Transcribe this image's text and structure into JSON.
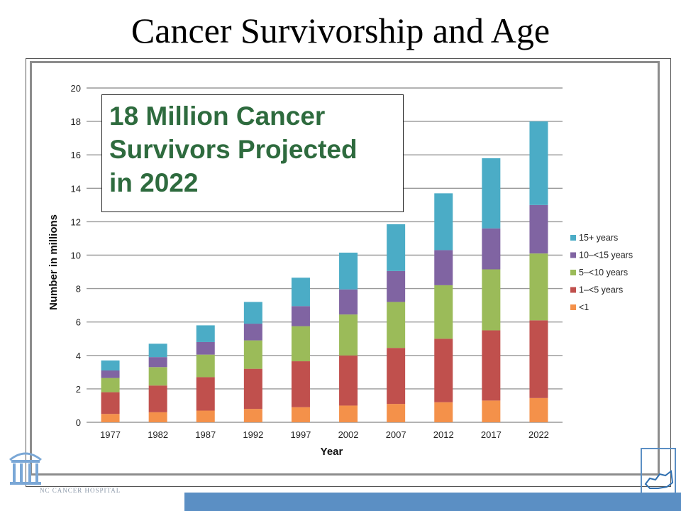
{
  "slide": {
    "title": "Cancer Survivorship and Age",
    "footer_text": "NC CANCER HOSPITAL",
    "callout_lines": [
      "18 Million Cancer",
      "Survivors Projected",
      "in 2022"
    ]
  },
  "colors": {
    "background": "#ffffff",
    "title": "#000000",
    "callout_text": "#2e6b3e",
    "bottom_bar": "#5b8fc4",
    "grid": "#9a9a9a"
  },
  "chart_data": {
    "type": "bar",
    "stacked": true,
    "xlabel": "Year",
    "ylabel": "Number in millions",
    "ylim": [
      0,
      20
    ],
    "yticks": [
      0,
      2,
      4,
      6,
      8,
      10,
      12,
      14,
      16,
      18,
      20
    ],
    "grid": true,
    "legend_position": "right",
    "categories": [
      "1977",
      "1982",
      "1987",
      "1992",
      "1997",
      "2002",
      "2007",
      "2012",
      "2017",
      "2022"
    ],
    "series": [
      {
        "name": "<1",
        "color": "#f4914a",
        "values": [
          0.5,
          0.6,
          0.7,
          0.8,
          0.9,
          1.0,
          1.1,
          1.2,
          1.3,
          1.45
        ]
      },
      {
        "name": "1–<5 years",
        "color": "#c0504d",
        "values": [
          1.3,
          1.6,
          2.0,
          2.4,
          2.75,
          3.0,
          3.35,
          3.8,
          4.2,
          4.65
        ]
      },
      {
        "name": "5–<10 years",
        "color": "#9bbb59",
        "values": [
          0.85,
          1.1,
          1.35,
          1.7,
          2.1,
          2.45,
          2.75,
          3.2,
          3.65,
          4.0
        ]
      },
      {
        "name": "10–<15 years",
        "color": "#8064a2",
        "values": [
          0.45,
          0.6,
          0.75,
          1.0,
          1.2,
          1.5,
          1.85,
          2.1,
          2.45,
          2.9
        ]
      },
      {
        "name": "15+ years",
        "color": "#4bacc6",
        "values": [
          0.6,
          0.8,
          1.0,
          1.3,
          1.7,
          2.2,
          2.8,
          3.4,
          4.2,
          5.0
        ]
      }
    ]
  }
}
